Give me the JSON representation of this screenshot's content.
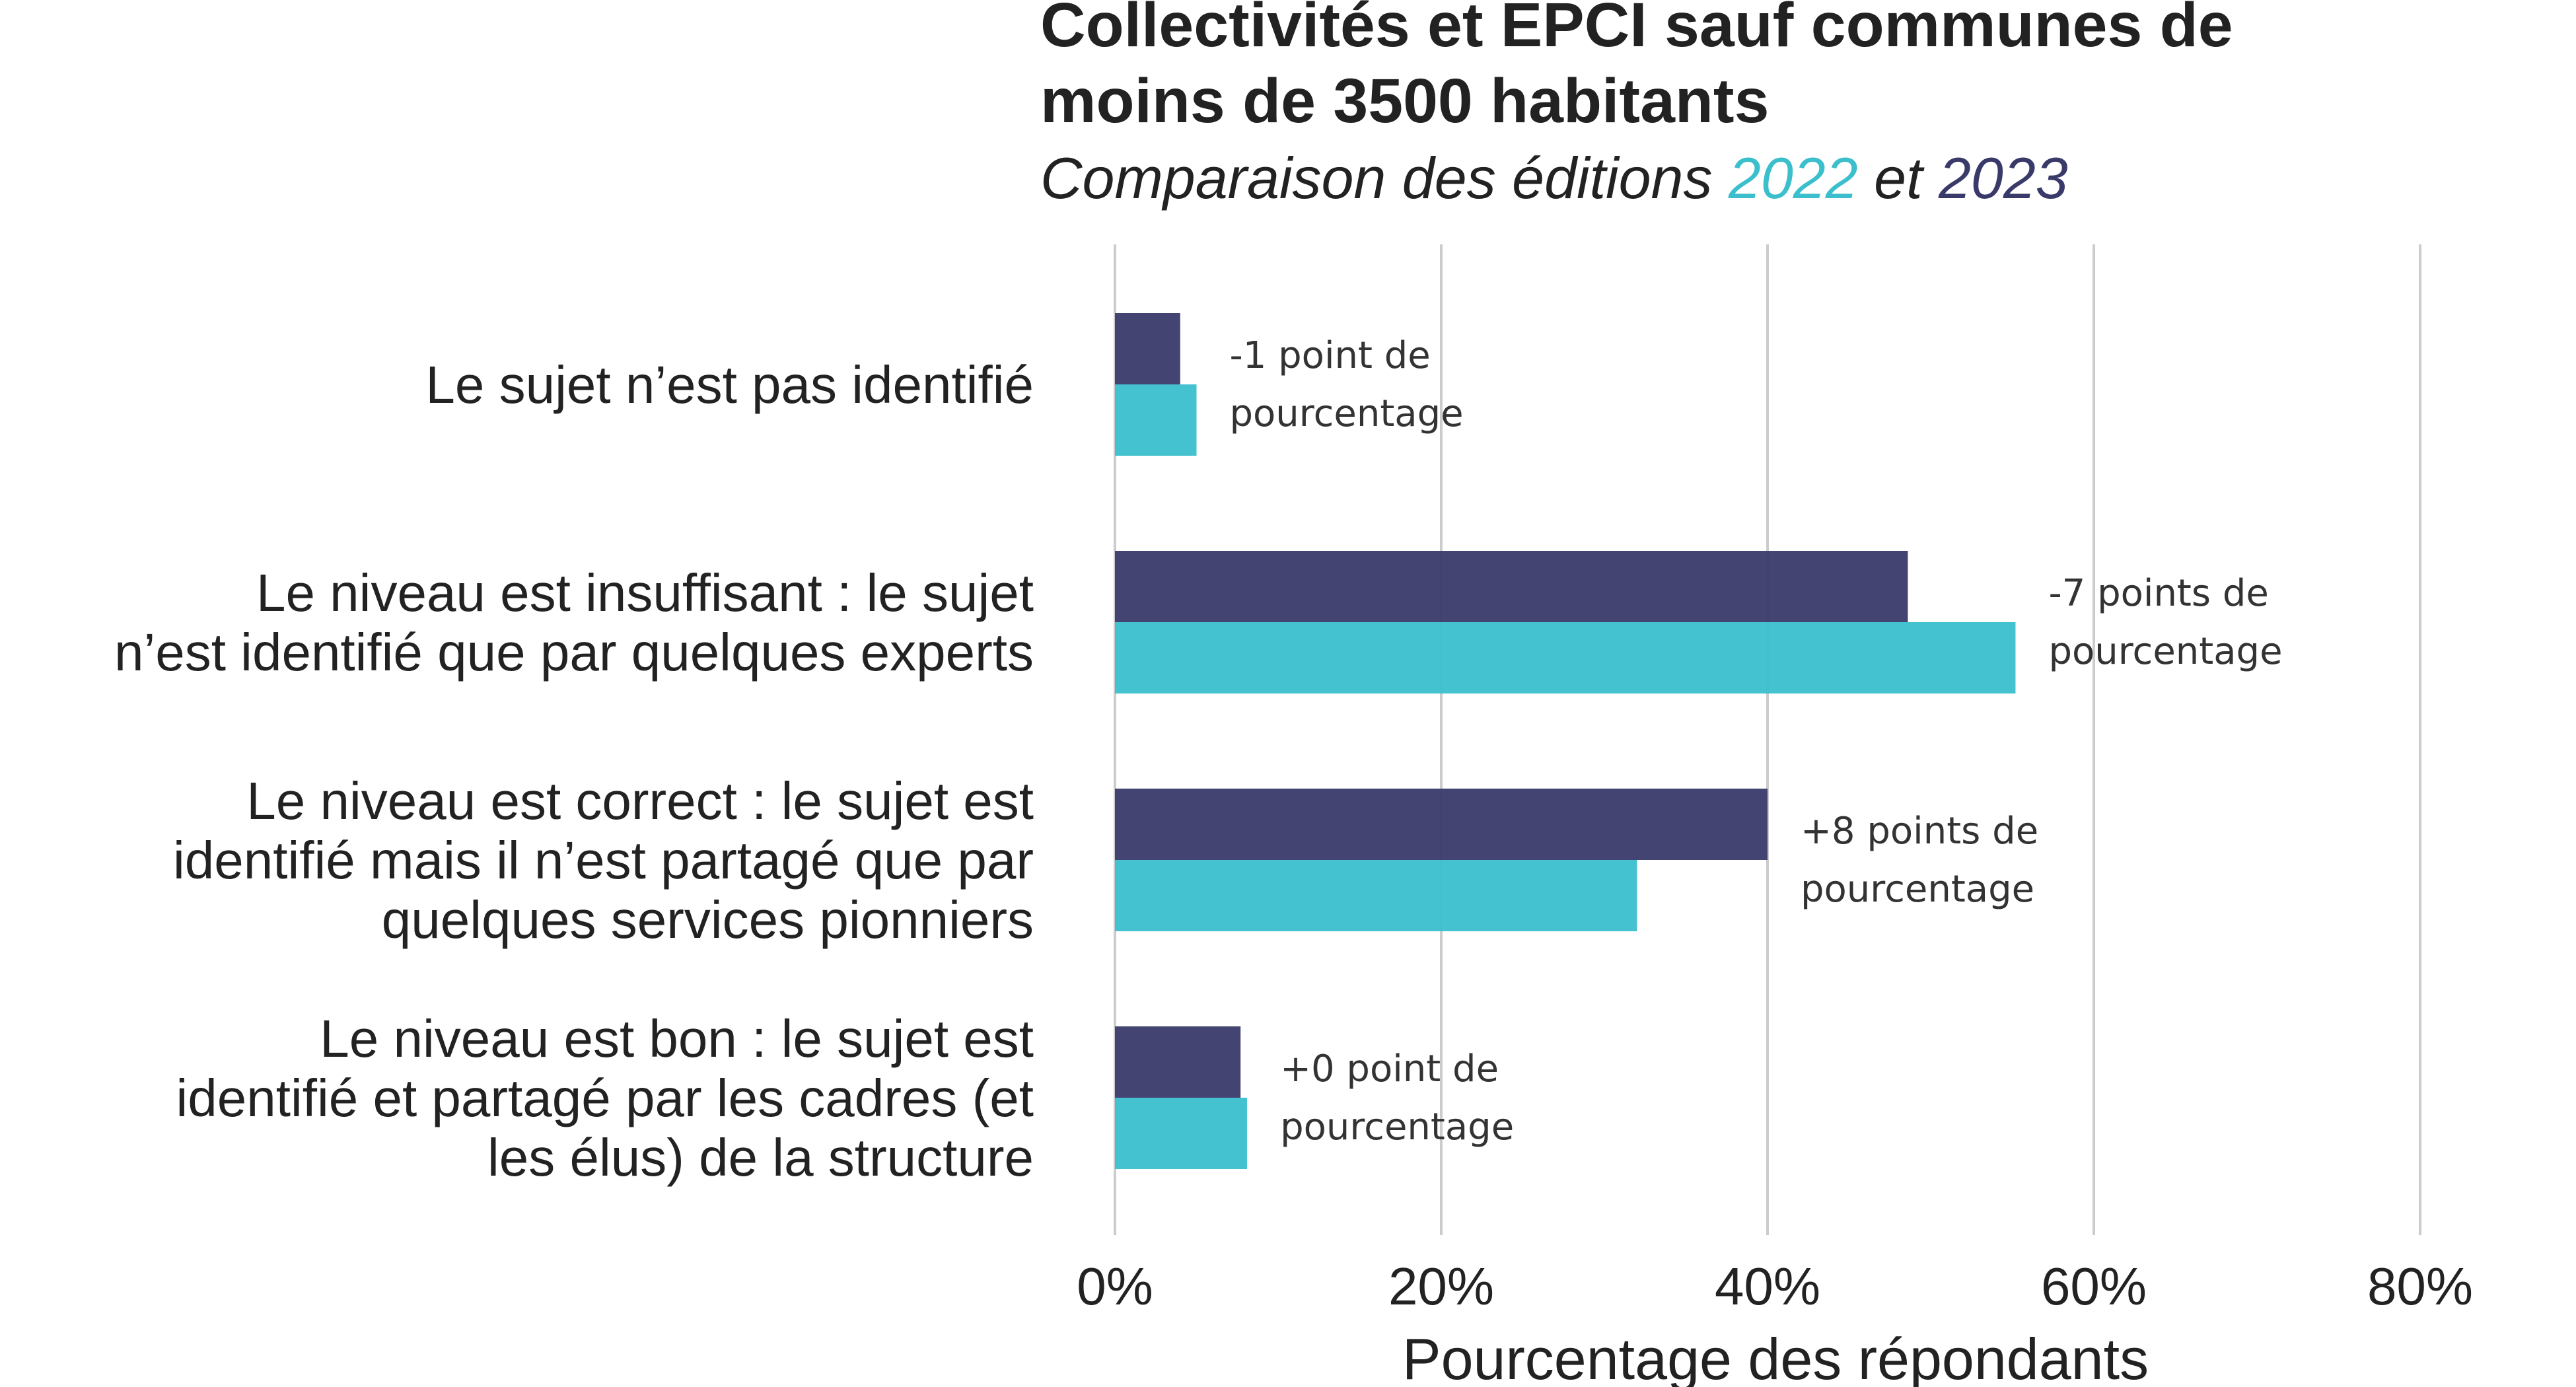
{
  "colors": {
    "series_2023": "#3a3a6a",
    "series_2022": "#3bbfcc",
    "text": "#222222",
    "grid": "#cccccc"
  },
  "chart_data": {
    "type": "bar",
    "orientation": "horizontal",
    "title_lines": [
      "Collectivités et EPCI sauf communes de",
      "moins de 3500 habitants"
    ],
    "subtitle": {
      "prefix": "Comparaison des éditions ",
      "year_a": "2022",
      "middle": " et ",
      "year_b": "2023"
    },
    "categories": [
      [
        "Le sujet n’est pas identifié"
      ],
      [
        "Le niveau est insuffisant : le sujet",
        "n’est identifié que par quelques experts"
      ],
      [
        "Le niveau est correct : le sujet est",
        "identifié mais il n’est partagé que par",
        "quelques services pionniers"
      ],
      [
        "Le niveau est bon : le sujet est",
        "identifié et partagé par les cadres (et",
        "les élus) de la structure"
      ]
    ],
    "series": [
      {
        "name": "2023",
        "values": [
          4,
          48.6,
          40,
          7.7
        ]
      },
      {
        "name": "2022",
        "values": [
          5,
          55.2,
          32,
          8.1
        ]
      }
    ],
    "annotations": [
      [
        "-1 point de",
        "pourcentage"
      ],
      [
        "-7 points de",
        "pourcentage"
      ],
      [
        "+8 points de",
        "pourcentage"
      ],
      [
        "+0 point de",
        "pourcentage"
      ]
    ],
    "xticks": [
      0,
      20,
      40,
      60,
      80
    ],
    "xtick_labels": [
      "0%",
      "20%",
      "40%",
      "60%",
      "80%"
    ],
    "xlim": [
      0,
      80
    ],
    "xlabel": "Pourcentage des répondants",
    "ylabel": "",
    "grid": "vertical",
    "legend": "in subtitle"
  }
}
